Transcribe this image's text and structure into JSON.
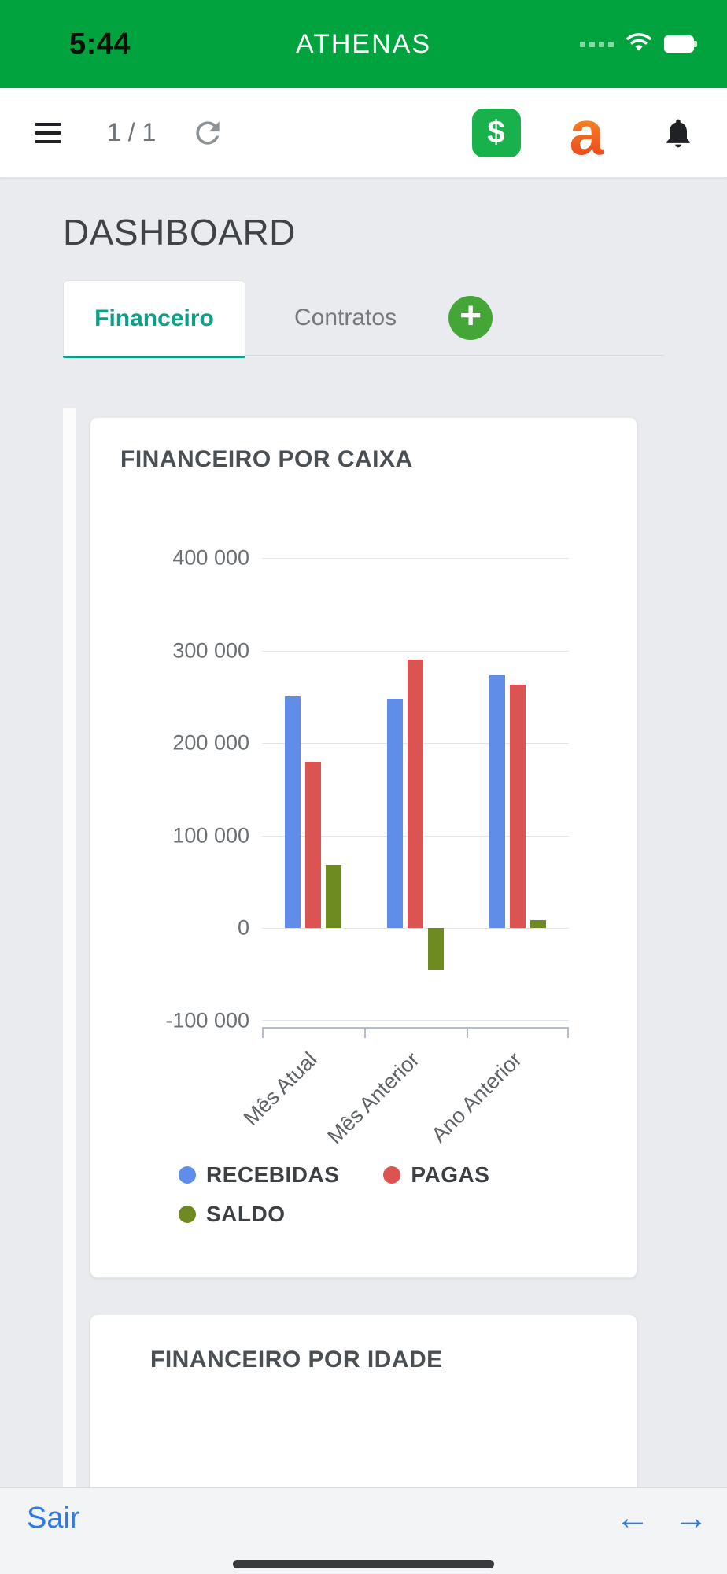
{
  "status_bar": {
    "time": "5:44",
    "app_title": "ATHENAS",
    "bg_color": "#00A33E"
  },
  "toolbar": {
    "page_indicator": "1 / 1",
    "dollar_icon_label": "$",
    "logo_letter": "a"
  },
  "page": {
    "title": "DASHBOARD"
  },
  "tabs": {
    "items": [
      {
        "label": "Financeiro",
        "active": true
      },
      {
        "label": "Contratos",
        "active": false
      }
    ],
    "accent_color": "#0EA086"
  },
  "cards": {
    "caixa": {
      "title": "FINANCEIRO POR CAIXA"
    },
    "idade": {
      "title": "FINANCEIRO POR IDADE"
    }
  },
  "chart_data": {
    "type": "bar",
    "title": "FINANCEIRO POR CAIXA",
    "categories": [
      "Mês Atual",
      "Mês Anterior",
      "Ano Anterior"
    ],
    "series": [
      {
        "name": "RECEBIDAS",
        "color": "#5F8DE8",
        "values": [
          250000,
          248000,
          273000
        ]
      },
      {
        "name": "PAGAS",
        "color": "#DB5452",
        "values": [
          180000,
          290000,
          263000
        ]
      },
      {
        "name": "SALDO",
        "color": "#6E8B21",
        "values": [
          68000,
          -45000,
          9000
        ]
      }
    ],
    "ylim": [
      -100000,
      400000
    ],
    "ytick_step": 100000,
    "ytick_labels": [
      "400 000",
      "300 000",
      "200 000",
      "100 000",
      "0",
      "-100 000"
    ],
    "grid": true,
    "legend_position": "bottom"
  },
  "footer": {
    "exit_label": "Sair"
  },
  "colors": {
    "status_bar_green": "#00A33E",
    "accent_teal": "#0EA086",
    "dollar_green": "#18B14B",
    "plus_green": "#44A636",
    "logo_orange": "#F4711F",
    "link_blue": "#2F7BE5",
    "content_bg": "#E9EBEE"
  }
}
